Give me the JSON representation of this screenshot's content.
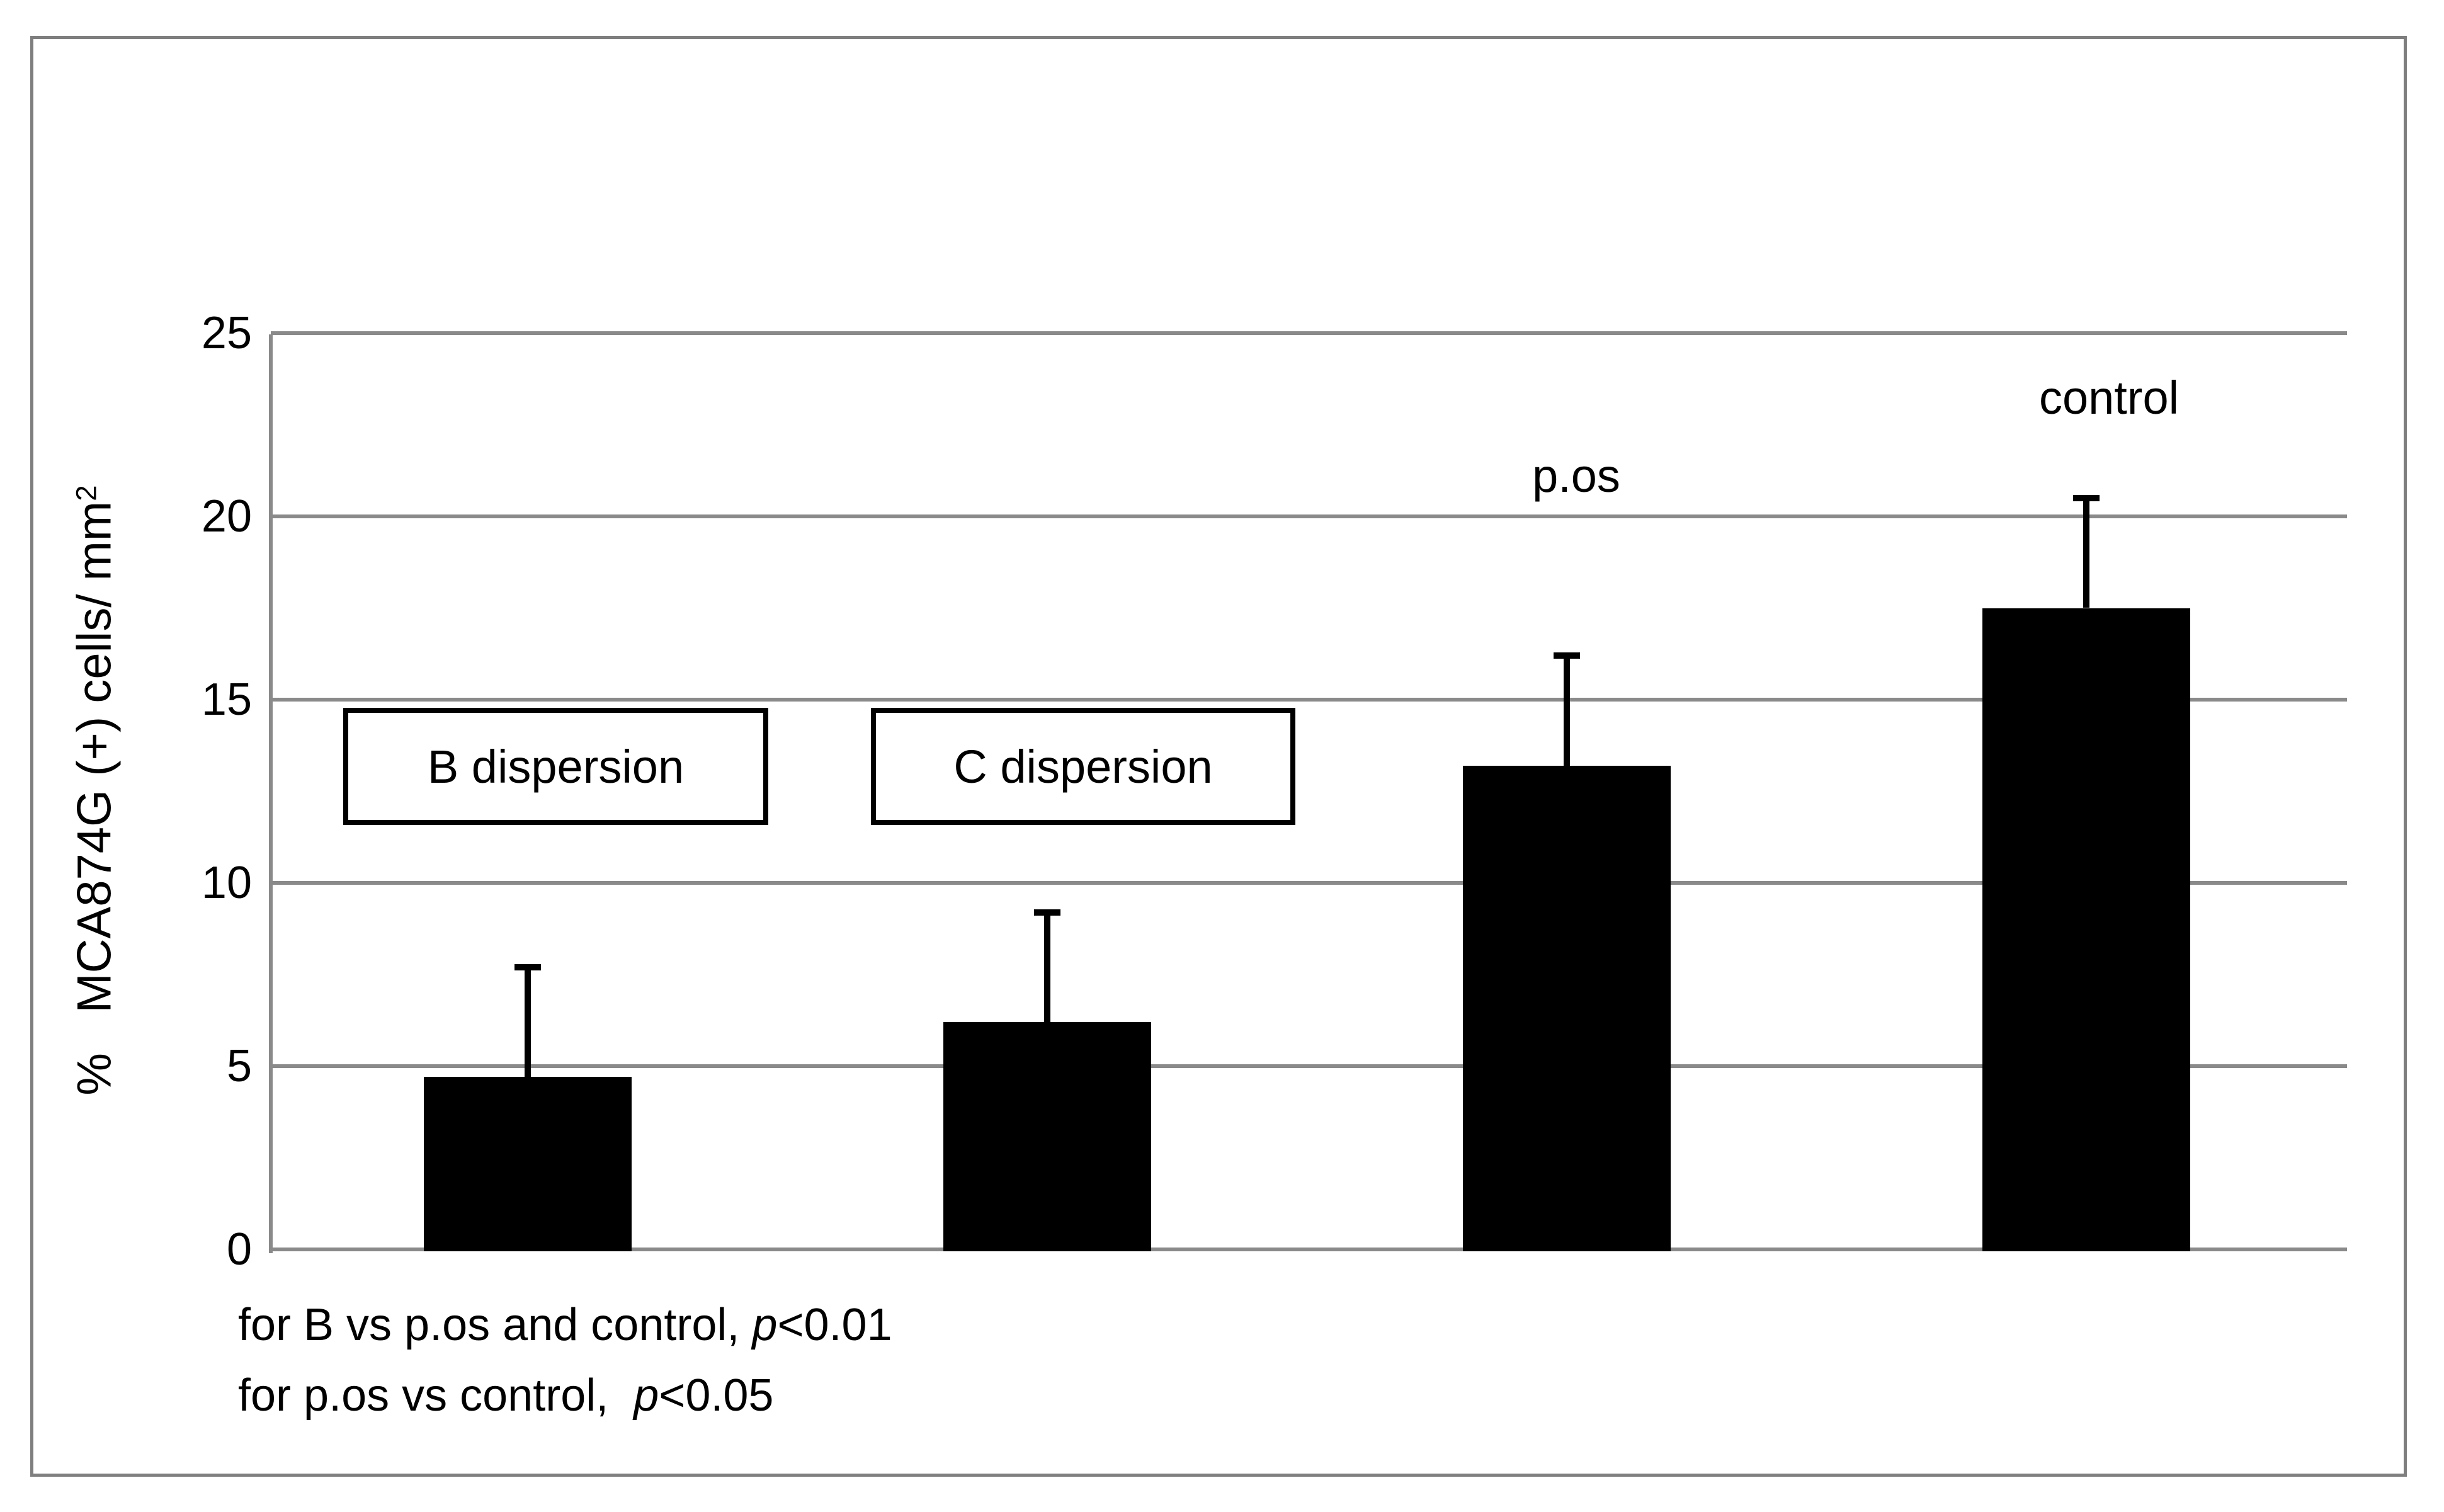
{
  "figure": {
    "background": "#ffffff",
    "border_color": "#7f7f7f"
  },
  "y_axis": {
    "title": "%   MCA874G (+) cells/ mm",
    "title_sup": "2",
    "ticks": [
      25,
      20,
      15,
      10,
      5,
      0
    ],
    "grid_color": "#8a8a8a",
    "text_color": "#000000"
  },
  "chart_data": {
    "type": "bar",
    "title": "",
    "xlabel": "",
    "ylabel": "% MCA874G (+) cells/ mm2",
    "ylim": [
      0,
      25
    ],
    "grid": true,
    "gridline_step": 5,
    "legend_position": "none",
    "categories": [
      "B dispersion",
      "C dispersion",
      "p.os",
      "control"
    ],
    "values": [
      4.7,
      6.2,
      13.2,
      17.5
    ],
    "error_upper": [
      3.0,
      3.0,
      3.0,
      3.0
    ],
    "bar_color": "#000000",
    "annotations": [
      "for B vs p.os and control, p<0.01",
      "for p.os vs control, p<0.05"
    ]
  },
  "footnotes": {
    "line1": {
      "prefix": "for B vs p.os and control, ",
      "p": "p",
      "suffix": "<0.01"
    },
    "line2": {
      "prefix": "for p.os vs control,  ",
      "p": "p",
      "suffix": "<0.05"
    }
  }
}
